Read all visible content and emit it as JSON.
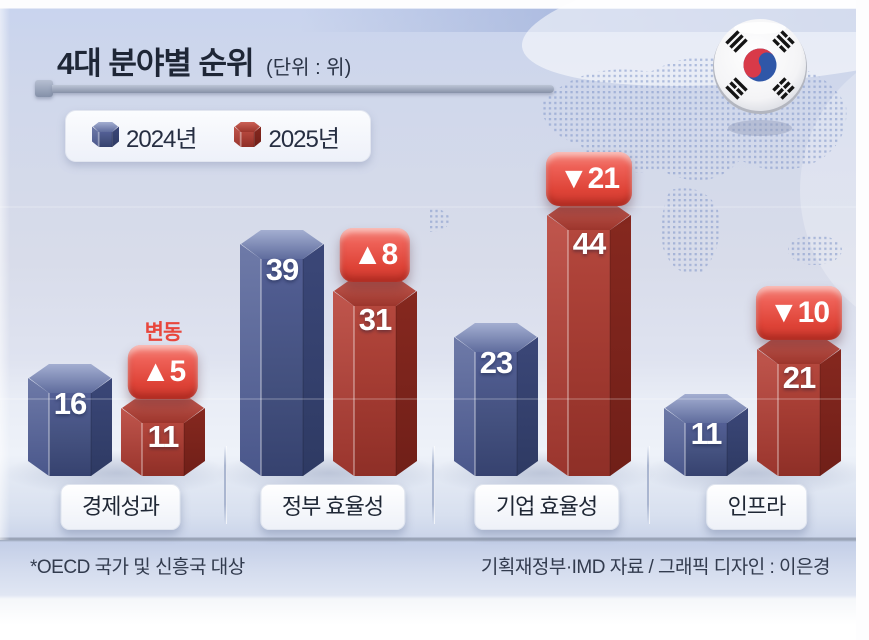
{
  "header": {
    "title": "4대 분야별 순위",
    "unit": "(단위 : 위)"
  },
  "legend": {
    "items": [
      {
        "label": "2024년",
        "color": "#4d5b90"
      },
      {
        "label": "2025년",
        "color": "#b0443a"
      }
    ]
  },
  "flag": {
    "name": "south-korea-flag"
  },
  "chart_data": {
    "type": "bar",
    "title": "4대 분야별 순위",
    "unit_label": "(단위 : 위)",
    "bar_style": "3d-hexagonal-column",
    "legend_position": "top-left",
    "categories": [
      "경제성과",
      "정부 효율성",
      "기업 효율성",
      "인프라"
    ],
    "series": [
      {
        "name": "2024년",
        "color": "#4d5b90",
        "values": [
          16,
          39,
          23,
          11
        ]
      },
      {
        "name": "2025년",
        "color": "#b0443a",
        "values": [
          11,
          31,
          44,
          21
        ]
      }
    ],
    "changes": [
      "▲5",
      "▲8",
      "▼21",
      "▼10"
    ],
    "change_label": "변동",
    "change_badge_color": "#e04c40"
  },
  "footer": {
    "note": "*OECD 국가 및 신흥국 대상",
    "credit": "기획재정부·IMD 자료 / 그래픽 디자인 : 이은경"
  }
}
